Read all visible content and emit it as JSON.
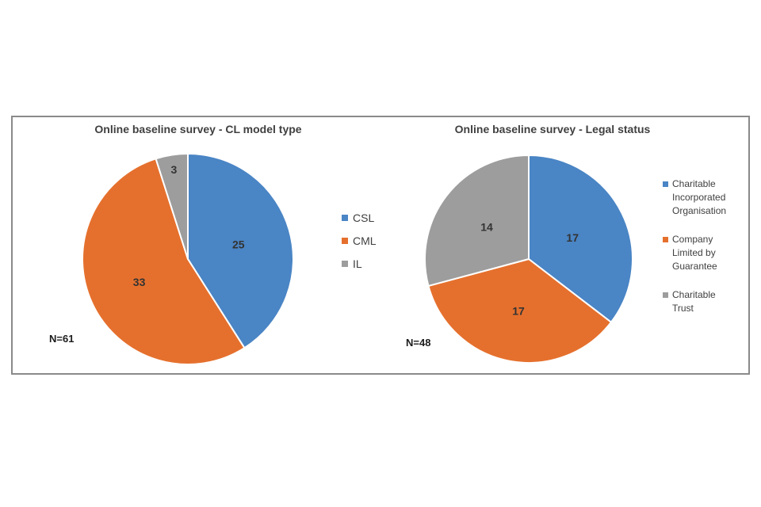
{
  "panel": {
    "border_color": "#8a8a8a",
    "background": "#ffffff"
  },
  "colors": {
    "blue": "#4a85c5",
    "orange": "#e5702d",
    "gray": "#9d9d9d",
    "title_text": "#404040",
    "slice_label_text": "#333333",
    "legend_text": "#404040",
    "n_label_text": "#1c1c1c"
  },
  "chart_data": [
    {
      "type": "pie",
      "title": "Online baseline survey - CL model type",
      "n_label": "N=61",
      "total": 61,
      "start_angle_deg": 0,
      "direction": "clockwise",
      "legend_position": "right",
      "slices": [
        {
          "label": "CSL",
          "value": 25,
          "color": "#4a85c5",
          "label_r": 0.5
        },
        {
          "label": "CML",
          "value": 33,
          "color": "#e5702d",
          "label_r": 0.51
        },
        {
          "label": "IL",
          "value": 3,
          "color": "#9d9d9d",
          "label_r": 0.86
        }
      ]
    },
    {
      "type": "pie",
      "title": "Online baseline survey - Legal status",
      "n_label": "N=48",
      "total": 48,
      "start_angle_deg": 0,
      "direction": "clockwise",
      "legend_position": "right",
      "slices": [
        {
          "label": "Charitable Incorporated Organisation",
          "value": 17,
          "color": "#4a85c5",
          "label_r": 0.47
        },
        {
          "label": "Company Limited by Guarantee",
          "value": 17,
          "color": "#e5702d",
          "label_r": 0.51
        },
        {
          "label": "Charitable Trust",
          "value": 14,
          "color": "#9d9d9d",
          "label_r": 0.51
        }
      ]
    }
  ]
}
